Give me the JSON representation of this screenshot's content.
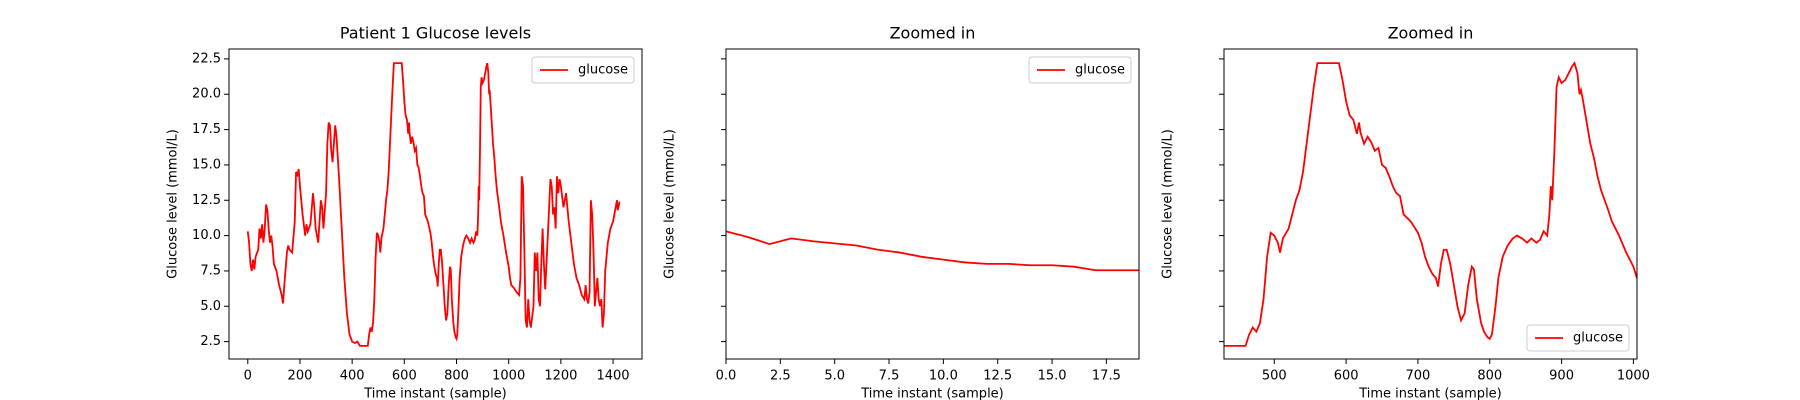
{
  "chart_data": [
    {
      "type": "line",
      "title": "Patient 1 Glucose levels",
      "xlabel": "Time instant (sample)",
      "ylabel": "Glucose level (mmol/L)",
      "x": [
        0,
        5,
        10,
        15,
        20,
        25,
        30,
        40,
        45,
        50,
        55,
        60,
        65,
        70,
        75,
        80,
        85,
        90,
        95,
        100,
        110,
        120,
        130,
        135,
        140,
        150,
        155,
        160,
        170,
        180,
        185,
        190,
        195,
        200,
        210,
        220,
        225,
        230,
        240,
        250,
        255,
        260,
        270,
        275,
        280,
        285,
        290,
        300,
        305,
        310,
        315,
        320,
        325,
        330,
        335,
        340,
        350,
        360,
        370,
        380,
        390,
        400,
        410,
        420,
        430,
        460,
        465,
        470,
        475,
        480,
        485,
        490,
        495,
        500,
        505,
        508,
        512,
        520,
        525,
        530,
        535,
        540,
        545,
        550,
        555,
        560,
        590,
        595,
        600,
        605,
        610,
        615,
        618,
        620,
        625,
        630,
        635,
        640,
        645,
        650,
        655,
        660,
        665,
        670,
        675,
        680,
        690,
        700,
        705,
        710,
        715,
        720,
        725,
        728,
        732,
        736,
        740,
        745,
        750,
        755,
        760,
        765,
        770,
        775,
        778,
        782,
        788,
        792,
        797,
        800,
        803,
        808,
        812,
        818,
        825,
        832,
        838,
        845,
        852,
        858,
        865,
        870,
        875,
        880,
        883,
        885,
        887,
        890,
        893,
        896,
        900,
        905,
        910,
        915,
        918,
        922,
        925,
        927,
        930,
        935,
        940,
        945,
        950,
        955,
        960,
        965,
        970,
        980,
        990,
        1000,
        1005,
        1010,
        1020,
        1030,
        1040,
        1045,
        1050,
        1055,
        1060,
        1065,
        1070,
        1075,
        1080,
        1085,
        1095,
        1100,
        1105,
        1110,
        1115,
        1120,
        1125,
        1130,
        1135,
        1140,
        1150,
        1160,
        1165,
        1170,
        1175,
        1180,
        1185,
        1190,
        1195,
        1200,
        1210,
        1220,
        1230,
        1240,
        1250,
        1260,
        1270,
        1280,
        1290,
        1295,
        1300,
        1305,
        1310,
        1315,
        1320,
        1325,
        1330,
        1335,
        1340,
        1345,
        1350,
        1355,
        1360,
        1365,
        1370,
        1380,
        1390,
        1400,
        1410,
        1415,
        1418,
        1425
      ],
      "series": [
        {
          "name": "glucose",
          "color": "#ff0000",
          "values": [
            10.3,
            9.5,
            8.0,
            7.5,
            8.3,
            7.6,
            8.5,
            9.0,
            10.5,
            9.8,
            10.8,
            9.5,
            10.5,
            12.2,
            11.8,
            10.5,
            9.5,
            10.0,
            9.2,
            8.0,
            7.5,
            6.5,
            5.8,
            5.2,
            6.5,
            8.8,
            9.3,
            9.0,
            8.8,
            11.0,
            14.5,
            14.3,
            14.7,
            13.5,
            11.5,
            10.0,
            10.8,
            10.3,
            10.8,
            13.0,
            12.0,
            10.5,
            9.5,
            11.0,
            12.5,
            12.0,
            10.5,
            13.0,
            16.5,
            18.0,
            17.8,
            16.0,
            15.2,
            16.5,
            17.8,
            17.0,
            14.0,
            10.5,
            7.0,
            4.5,
            3.0,
            2.5,
            2.4,
            2.5,
            2.2,
            2.2,
            3.0,
            3.5,
            3.2,
            3.8,
            5.5,
            8.5,
            10.2,
            10.0,
            9.5,
            8.8,
            9.8,
            10.5,
            11.5,
            12.5,
            13.2,
            14.5,
            16.5,
            18.5,
            20.5,
            22.2,
            22.2,
            21.0,
            19.5,
            18.5,
            18.2,
            17.2,
            18.0,
            17.3,
            16.5,
            17.0,
            16.6,
            16.0,
            16.2,
            15.0,
            14.8,
            14.2,
            13.5,
            13.0,
            12.8,
            11.5,
            11.0,
            10.2,
            9.5,
            8.5,
            7.8,
            7.3,
            7.0,
            6.4,
            8.0,
            9.0,
            9.0,
            8.0,
            6.5,
            5.0,
            4.0,
            4.5,
            6.5,
            7.8,
            7.6,
            5.5,
            3.8,
            3.2,
            2.8,
            2.7,
            3.0,
            5.0,
            7.0,
            8.5,
            9.3,
            9.8,
            10.0,
            9.8,
            9.5,
            9.8,
            9.5,
            9.7,
            10.3,
            10.0,
            11.5,
            13.5,
            12.5,
            16.0,
            20.5,
            21.2,
            20.8,
            21.0,
            21.5,
            22.0,
            22.2,
            21.5,
            20.0,
            20.3,
            19.5,
            18.0,
            16.5,
            15.5,
            14.2,
            13.2,
            12.5,
            11.8,
            11.0,
            10.0,
            8.8,
            7.8,
            7.0,
            6.5,
            6.3,
            6.0,
            5.8,
            7.0,
            14.2,
            13.5,
            9.0,
            4.0,
            3.5,
            5.5,
            4.0,
            3.5,
            5.0,
            8.8,
            7.5,
            8.8,
            5.5,
            5.0,
            8.0,
            10.5,
            8.0,
            6.2,
            10.0,
            14.0,
            13.5,
            11.5,
            12.0,
            10.5,
            14.2,
            13.0,
            14.0,
            13.5,
            12.0,
            13.0,
            11.0,
            9.5,
            8.0,
            7.0,
            6.5,
            5.8,
            5.5,
            6.5,
            5.5,
            5.2,
            6.0,
            12.5,
            11.5,
            9.0,
            5.0,
            6.0,
            7.0,
            5.5,
            5.0,
            5.5,
            3.5,
            4.5,
            7.5,
            9.5,
            10.5,
            11.0,
            12.0,
            12.5,
            11.8,
            12.4
          ]
        }
      ],
      "xlim": [
        -72,
        1511
      ],
      "ylim": [
        1.27,
        23.2
      ],
      "xticks": [
        0,
        200,
        400,
        600,
        800,
        1000,
        1200,
        1400
      ],
      "yticks": [
        {
          "value": 2.5,
          "label": "2.5"
        },
        {
          "value": 5,
          "label": "5.0"
        },
        {
          "value": 7.5,
          "label": "7.5"
        },
        {
          "value": 10,
          "label": "10.0"
        },
        {
          "value": 12.5,
          "label": "12.5"
        },
        {
          "value": 15,
          "label": "15.0"
        },
        {
          "value": 17.5,
          "label": "17.5"
        },
        {
          "value": 20,
          "label": "20.0"
        },
        {
          "value": 22.5,
          "label": "22.5"
        }
      ],
      "show_ytick_labels": true,
      "legend": "upper right"
    },
    {
      "type": "line",
      "title": "Zoomed in",
      "xlabel": "Time instant (sample)",
      "ylabel": "Glucose level (mmol/L)",
      "x": [
        0,
        1,
        2,
        3,
        4,
        5,
        6,
        7,
        8,
        9,
        10,
        11,
        12,
        13,
        14,
        15,
        16,
        17,
        18,
        19
      ],
      "series": [
        {
          "name": "glucose",
          "color": "#ff0000",
          "values": [
            10.3,
            9.9,
            9.4,
            9.8,
            9.6,
            9.45,
            9.3,
            9.0,
            8.8,
            8.5,
            8.3,
            8.1,
            8.0,
            8.0,
            7.9,
            7.9,
            7.8,
            7.55,
            7.55,
            7.55
          ]
        }
      ],
      "xlim": [
        0,
        19
      ],
      "ylim": [
        1.27,
        23.2
      ],
      "xticks": [
        {
          "value": 0,
          "label": "0.0"
        },
        {
          "value": 2.5,
          "label": "2.5"
        },
        {
          "value": 5,
          "label": "5.0"
        },
        {
          "value": 7.5,
          "label": "7.5"
        },
        {
          "value": 10,
          "label": "10.0"
        },
        {
          "value": 12.5,
          "label": "12.5"
        },
        {
          "value": 15,
          "label": "15.0"
        },
        {
          "value": 17.5,
          "label": "17.5"
        }
      ],
      "yticks": [
        2.5,
        5,
        7.5,
        10,
        12.5,
        15,
        17.5,
        20,
        22.5
      ],
      "show_ytick_labels": false,
      "legend": "upper right"
    },
    {
      "type": "line",
      "title": "Zoomed in",
      "xlabel": "Time instant (sample)",
      "ylabel": "Glucose level (mmol/L)",
      "x": [
        430,
        460,
        465,
        470,
        475,
        480,
        485,
        490,
        495,
        500,
        505,
        508,
        512,
        520,
        525,
        530,
        535,
        540,
        545,
        550,
        555,
        560,
        590,
        595,
        600,
        605,
        610,
        615,
        618,
        620,
        625,
        630,
        635,
        640,
        645,
        650,
        655,
        660,
        665,
        670,
        675,
        680,
        690,
        700,
        705,
        710,
        715,
        720,
        725,
        728,
        732,
        736,
        740,
        745,
        750,
        755,
        760,
        765,
        770,
        775,
        778,
        782,
        788,
        792,
        797,
        800,
        803,
        808,
        812,
        818,
        825,
        832,
        838,
        845,
        852,
        858,
        865,
        870,
        875,
        880,
        883,
        885,
        887,
        890,
        893,
        896,
        900,
        905,
        910,
        915,
        918,
        922,
        925,
        927,
        930,
        935,
        940,
        945,
        950,
        955,
        960,
        965,
        970,
        980,
        990,
        1000,
        1005,
        1010
      ],
      "series": [
        {
          "name": "glucose",
          "color": "#ff0000",
          "values": [
            2.2,
            2.2,
            3.0,
            3.5,
            3.2,
            3.8,
            5.5,
            8.5,
            10.2,
            10.0,
            9.5,
            8.8,
            9.8,
            10.5,
            11.5,
            12.5,
            13.2,
            14.5,
            16.5,
            18.5,
            20.5,
            22.2,
            22.2,
            21.0,
            19.5,
            18.5,
            18.2,
            17.2,
            18.0,
            17.3,
            16.5,
            17.0,
            16.6,
            16.0,
            16.2,
            15.0,
            14.8,
            14.2,
            13.5,
            13.0,
            12.8,
            11.5,
            11.0,
            10.2,
            9.5,
            8.5,
            7.8,
            7.3,
            7.0,
            6.4,
            8.0,
            9.0,
            9.0,
            8.0,
            6.5,
            5.0,
            4.0,
            4.5,
            6.5,
            7.8,
            7.6,
            5.5,
            3.8,
            3.2,
            2.8,
            2.7,
            3.0,
            5.0,
            7.0,
            8.5,
            9.3,
            9.8,
            10.0,
            9.8,
            9.5,
            9.8,
            9.5,
            9.7,
            10.3,
            10.0,
            11.5,
            13.5,
            12.5,
            16.0,
            20.5,
            21.2,
            20.8,
            21.0,
            21.5,
            22.0,
            22.2,
            21.5,
            20.0,
            20.3,
            19.5,
            18.0,
            16.5,
            15.5,
            14.2,
            13.2,
            12.5,
            11.8,
            11.0,
            10.0,
            8.8,
            7.8,
            7.0,
            6.5
          ]
        }
      ],
      "xlim": [
        430,
        1005
      ],
      "ylim": [
        1.27,
        23.2
      ],
      "xticks": [
        500,
        600,
        700,
        800,
        900,
        1000
      ],
      "yticks": [
        2.5,
        5,
        7.5,
        10,
        12.5,
        15,
        17.5,
        20,
        22.5
      ],
      "show_ytick_labels": false,
      "legend": "lower right"
    }
  ]
}
